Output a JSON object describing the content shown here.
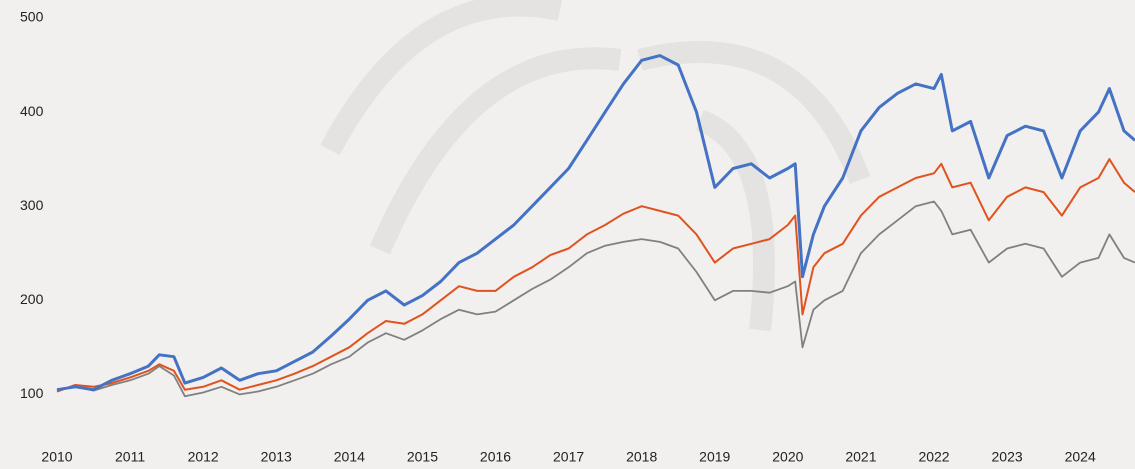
{
  "chart_data": {
    "type": "line",
    "x": [
      2010,
      2010.25,
      2010.5,
      2010.75,
      2011,
      2011.25,
      2011.4,
      2011.6,
      2011.75,
      2012,
      2012.25,
      2012.5,
      2012.75,
      2013,
      2013.25,
      2013.5,
      2013.75,
      2014,
      2014.25,
      2014.5,
      2014.75,
      2015,
      2015.25,
      2015.5,
      2015.75,
      2016,
      2016.25,
      2016.5,
      2016.75,
      2017,
      2017.25,
      2017.5,
      2017.75,
      2018,
      2018.25,
      2018.5,
      2018.75,
      2019,
      2019.25,
      2019.5,
      2019.75,
      2020,
      2020.1,
      2020.2,
      2020.35,
      2020.5,
      2020.75,
      2021,
      2021.25,
      2021.5,
      2021.75,
      2022,
      2022.1,
      2022.25,
      2022.5,
      2022.75,
      2023,
      2023.25,
      2023.5,
      2023.75,
      2024,
      2024.25,
      2024.4,
      2024.6,
      2024.75
    ],
    "series": [
      {
        "color": "#4472c4",
        "values": [
          105,
          108,
          105,
          115,
          122,
          130,
          142,
          140,
          112,
          118,
          128,
          115,
          122,
          125,
          135,
          145,
          162,
          180,
          200,
          210,
          195,
          205,
          220,
          240,
          250,
          265,
          280,
          300,
          320,
          340,
          370,
          400,
          430,
          455,
          460,
          450,
          400,
          320,
          340,
          345,
          330,
          340,
          345,
          225,
          270,
          300,
          330,
          380,
          405,
          420,
          430,
          425,
          440,
          380,
          390,
          330,
          375,
          385,
          380,
          330,
          380,
          400,
          425,
          380,
          370
        ]
      },
      {
        "color": "#e0531e",
        "values": [
          103,
          110,
          108,
          112,
          118,
          125,
          132,
          125,
          105,
          108,
          115,
          105,
          110,
          115,
          122,
          130,
          140,
          150,
          165,
          178,
          175,
          185,
          200,
          215,
          210,
          210,
          225,
          235,
          248,
          255,
          270,
          280,
          292,
          300,
          295,
          290,
          270,
          240,
          255,
          260,
          265,
          280,
          290,
          185,
          235,
          250,
          260,
          290,
          310,
          320,
          330,
          335,
          345,
          320,
          325,
          285,
          310,
          320,
          315,
          290,
          320,
          330,
          350,
          325,
          315
        ]
      },
      {
        "color": "#808080",
        "values": [
          105,
          108,
          104,
          110,
          115,
          122,
          130,
          120,
          98,
          102,
          108,
          100,
          103,
          108,
          115,
          122,
          132,
          140,
          155,
          165,
          158,
          168,
          180,
          190,
          185,
          188,
          200,
          212,
          222,
          235,
          250,
          258,
          262,
          265,
          262,
          255,
          230,
          200,
          210,
          210,
          208,
          215,
          220,
          150,
          190,
          200,
          210,
          250,
          270,
          285,
          300,
          305,
          295,
          270,
          275,
          240,
          255,
          260,
          255,
          225,
          240,
          245,
          270,
          245,
          240
        ]
      }
    ],
    "xlim": [
      2010,
      2024.75
    ],
    "xticks": [
      2010,
      2011,
      2012,
      2013,
      2014,
      2015,
      2016,
      2017,
      2018,
      2019,
      2020,
      2021,
      2022,
      2023,
      2024
    ],
    "ylim": [
      60,
      500
    ],
    "yticks": [
      100,
      200,
      300,
      400,
      500
    ],
    "grid": false
  }
}
